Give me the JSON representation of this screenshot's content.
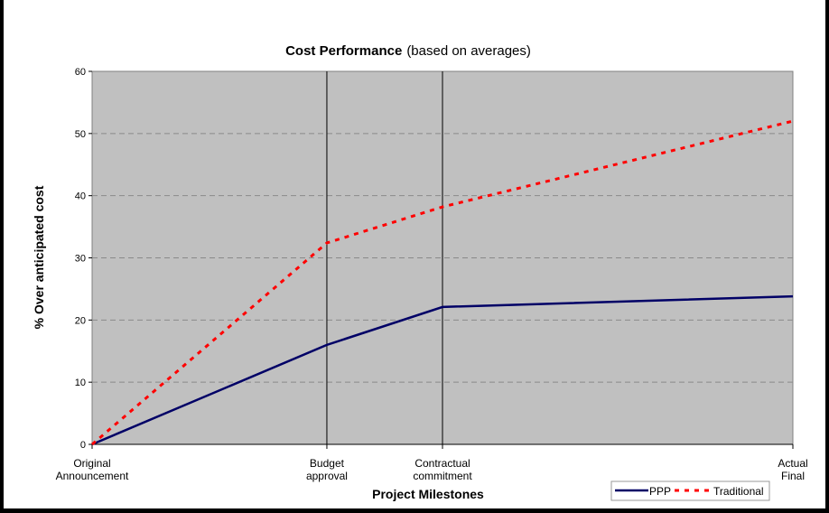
{
  "chart_data": {
    "type": "line",
    "title": "Cost Performance",
    "title_suffix": "(based on averages)",
    "xlabel": "Project Milestones",
    "ylabel": "% Over anticipated cost",
    "ylim": [
      0,
      60
    ],
    "yticks": [
      0,
      10,
      20,
      30,
      40,
      50,
      60
    ],
    "xlim": [
      0,
      100
    ],
    "categories": [
      {
        "label": [
          "Original",
          "Announcement"
        ],
        "x": 0
      },
      {
        "label": [
          "Budget",
          "approval"
        ],
        "x": 33.5
      },
      {
        "label": [
          "Contractual",
          "commitment"
        ],
        "x": 50
      },
      {
        "label": [
          "Actual",
          "Final"
        ],
        "x": 100
      }
    ],
    "series": [
      {
        "name": "PPP",
        "color": "#000066",
        "style": "solid",
        "values": [
          0,
          16.0,
          22.1,
          23.8
        ]
      },
      {
        "name": "Traditional",
        "color": "#ff0000",
        "style": "dashed",
        "values": [
          0,
          32.4,
          38.2,
          52.0
        ]
      }
    ],
    "grid": true,
    "legend": "bottom-right",
    "plot_background": "#c0c0c0"
  }
}
